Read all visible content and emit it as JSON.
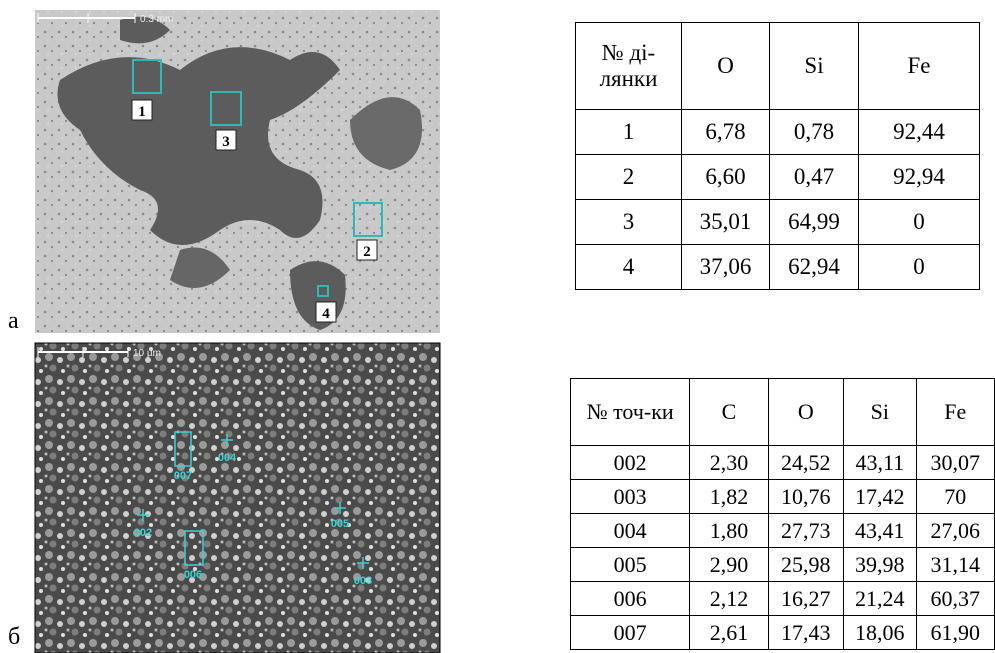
{
  "figure_a": {
    "label": "а",
    "scale": "0.3 mm",
    "regions": [
      "1",
      "2",
      "3",
      "4"
    ]
  },
  "table_a": {
    "header": [
      "№ ді-лянки",
      "O",
      "Si",
      "Fe"
    ],
    "rows": [
      [
        "1",
        "6,78",
        "0,78",
        "92,44"
      ],
      [
        "2",
        "6,60",
        "0,47",
        "92,94"
      ],
      [
        "3",
        "35,01",
        "64,99",
        "0"
      ],
      [
        "4",
        "37,06",
        "62,94",
        "0"
      ]
    ]
  },
  "figure_b": {
    "label": "б",
    "scale": "10 µm",
    "points": [
      "002",
      "003",
      "004",
      "005",
      "006",
      "007"
    ]
  },
  "table_b": {
    "header": [
      "№ точ-ки",
      "C",
      "O",
      "Si",
      "Fe"
    ],
    "rows": [
      [
        "002",
        "2,30",
        "24,52",
        "43,11",
        "30,07"
      ],
      [
        "003",
        "1,82",
        "10,76",
        "17,42",
        "70"
      ],
      [
        "004",
        "1,80",
        "27,73",
        "43,41",
        "27,06"
      ],
      [
        "005",
        "2,90",
        "25,98",
        "39,98",
        "31,14"
      ],
      [
        "006",
        "2,12",
        "16,27",
        "21,24",
        "60,37"
      ],
      [
        "007",
        "2,61",
        "17,43",
        "18,06",
        "61,90"
      ]
    ]
  }
}
